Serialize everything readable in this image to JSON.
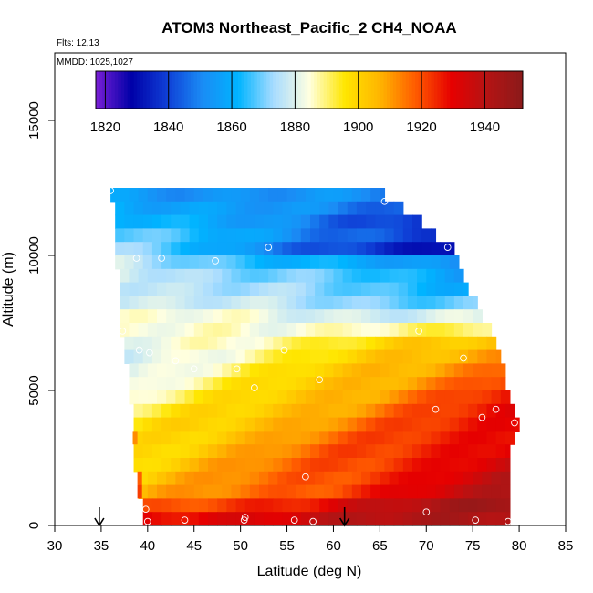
{
  "chart_data": {
    "type": "heatmap",
    "title": "ATOM3 Northeast_Pacific_2 CH4_NOAA",
    "flights_label": "Flts: 12,13",
    "date_label": "MMDD: 1025,1027",
    "xlabel": "Latitude (deg N)",
    "ylabel": "Altitude (m)",
    "xlim": [
      30,
      85
    ],
    "ylim": [
      0,
      17500
    ],
    "x_ticks": [
      30,
      35,
      40,
      45,
      50,
      55,
      60,
      65,
      70,
      75,
      80,
      85
    ],
    "y_ticks": [
      0,
      5000,
      10000,
      15000
    ],
    "x_tick_labels": [
      "30",
      "35",
      "40",
      "45",
      "50",
      "55",
      "60",
      "65",
      "70",
      "75",
      "80",
      "85"
    ],
    "y_tick_labels": [
      "0",
      "5000",
      "10000",
      "15000"
    ],
    "colorbar": {
      "range": [
        1817,
        1952
      ],
      "ticks": [
        1820,
        1840,
        1860,
        1880,
        1900,
        1920,
        1940
      ],
      "tick_labels": [
        "1820",
        "1840",
        "1860",
        "1880",
        "1900",
        "1920",
        "1940"
      ],
      "colors": [
        "#7a1fd6",
        "#0000a8",
        "#0f3fd6",
        "#1a8cf5",
        "#00b4ff",
        "#a8dcff",
        "#ffffe0",
        "#ffe600",
        "#ffb400",
        "#ff5a00",
        "#e60000",
        "#b41414",
        "#8b1a1a"
      ]
    },
    "arrows_latitude": [
      34.8,
      61.2
    ],
    "rows": [
      {
        "alt": 12250,
        "lat_start": 36.0,
        "lat_end": 65.5,
        "v_start": 1856,
        "v_end": 1850
      },
      {
        "alt": 11750,
        "lat_start": 36.5,
        "lat_end": 67.5,
        "v_start": 1862,
        "v_end": 1845
      },
      {
        "alt": 11250,
        "lat_start": 36.5,
        "lat_end": 69.5,
        "v_start": 1866,
        "v_end": 1838
      },
      {
        "alt": 10750,
        "lat_start": 36.5,
        "lat_end": 71.0,
        "v_start": 1870,
        "v_end": 1838
      },
      {
        "alt": 10250,
        "lat_start": 36.5,
        "lat_end": 73.0,
        "v_start": 1872,
        "v_end": 1826
      },
      {
        "alt": 9750,
        "lat_start": 36.5,
        "lat_end": 73.5,
        "v_start": 1876,
        "v_end": 1850
      },
      {
        "alt": 9250,
        "lat_start": 37.0,
        "lat_end": 74.0,
        "v_start": 1880,
        "v_end": 1858
      },
      {
        "alt": 8750,
        "lat_start": 37.0,
        "lat_end": 74.5,
        "v_start": 1880,
        "v_end": 1862
      },
      {
        "alt": 8250,
        "lat_start": 37.0,
        "lat_end": 75.5,
        "v_start": 1880,
        "v_end": 1868
      },
      {
        "alt": 7750,
        "lat_start": 37.0,
        "lat_end": 76.0,
        "v_start": 1884,
        "v_end": 1878
      },
      {
        "alt": 7250,
        "lat_start": 37.0,
        "lat_end": 77.0,
        "v_start": 1882,
        "v_end": 1890
      },
      {
        "alt": 6750,
        "lat_start": 37.5,
        "lat_end": 77.5,
        "v_start": 1880,
        "v_end": 1905
      },
      {
        "alt": 6250,
        "lat_start": 37.5,
        "lat_end": 78.0,
        "v_start": 1878,
        "v_end": 1912
      },
      {
        "alt": 5750,
        "lat_start": 38.0,
        "lat_end": 78.5,
        "v_start": 1880,
        "v_end": 1918
      },
      {
        "alt": 5250,
        "lat_start": 38.0,
        "lat_end": 78.5,
        "v_start": 1882,
        "v_end": 1922
      },
      {
        "alt": 4750,
        "lat_start": 38.0,
        "lat_end": 79.0,
        "v_start": 1885,
        "v_end": 1926
      },
      {
        "alt": 4250,
        "lat_start": 38.5,
        "lat_end": 79.5,
        "v_start": 1890,
        "v_end": 1928
      },
      {
        "alt": 3750,
        "lat_start": 38.5,
        "lat_end": 80.0,
        "v_start": 1894,
        "v_end": 1930
      },
      {
        "alt": 3250,
        "lat_start": 38.5,
        "lat_end": 79.5,
        "v_start": 1896,
        "v_end": 1932
      },
      {
        "alt": 2750,
        "lat_start": 38.5,
        "lat_end": 79.0,
        "v_start": 1898,
        "v_end": 1934
      },
      {
        "alt": 2250,
        "lat_start": 38.5,
        "lat_end": 79.0,
        "v_start": 1900,
        "v_end": 1936
      },
      {
        "alt": 1750,
        "lat_start": 39.0,
        "lat_end": 79.0,
        "v_start": 1902,
        "v_end": 1938
      },
      {
        "alt": 1250,
        "lat_start": 39.0,
        "lat_end": 79.0,
        "v_start": 1904,
        "v_end": 1940
      },
      {
        "alt": 750,
        "lat_start": 39.5,
        "lat_end": 79.0,
        "v_start": 1915,
        "v_end": 1948
      },
      {
        "alt": 250,
        "lat_start": 39.5,
        "lat_end": 79.0,
        "v_start": 1928,
        "v_end": 1946
      }
    ],
    "side_patches": [
      {
        "alt": 3250,
        "lat_start": 38.4,
        "lat_end": 38.9,
        "value": 1912
      },
      {
        "alt": 1750,
        "lat_start": 38.9,
        "lat_end": 39.4,
        "value": 1918
      },
      {
        "alt": 1250,
        "lat_start": 38.9,
        "lat_end": 39.4,
        "value": 1922
      }
    ],
    "points": [
      {
        "lat": 36.0,
        "alt": 12400
      },
      {
        "lat": 65.5,
        "alt": 12000
      },
      {
        "lat": 53.0,
        "alt": 10300
      },
      {
        "lat": 72.3,
        "alt": 10300
      },
      {
        "lat": 38.8,
        "alt": 9900
      },
      {
        "lat": 41.5,
        "alt": 9900
      },
      {
        "lat": 47.3,
        "alt": 9800
      },
      {
        "lat": 37.3,
        "alt": 7200
      },
      {
        "lat": 69.2,
        "alt": 7200
      },
      {
        "lat": 39.1,
        "alt": 6500
      },
      {
        "lat": 40.2,
        "alt": 6400
      },
      {
        "lat": 54.7,
        "alt": 6500
      },
      {
        "lat": 43.0,
        "alt": 6100
      },
      {
        "lat": 45.0,
        "alt": 5800
      },
      {
        "lat": 49.6,
        "alt": 5800
      },
      {
        "lat": 74.0,
        "alt": 6200
      },
      {
        "lat": 58.5,
        "alt": 5400
      },
      {
        "lat": 51.5,
        "alt": 5100
      },
      {
        "lat": 71.0,
        "alt": 4300
      },
      {
        "lat": 77.5,
        "alt": 4300
      },
      {
        "lat": 76.0,
        "alt": 4000
      },
      {
        "lat": 79.5,
        "alt": 3800
      },
      {
        "lat": 57.0,
        "alt": 1800
      },
      {
        "lat": 39.8,
        "alt": 600
      },
      {
        "lat": 70.0,
        "alt": 500
      },
      {
        "lat": 44.0,
        "alt": 200
      },
      {
        "lat": 50.5,
        "alt": 300
      },
      {
        "lat": 50.4,
        "alt": 200
      },
      {
        "lat": 55.8,
        "alt": 200
      },
      {
        "lat": 57.8,
        "alt": 150
      },
      {
        "lat": 40.0,
        "alt": 150
      },
      {
        "lat": 75.3,
        "alt": 200
      },
      {
        "lat": 78.8,
        "alt": 150
      }
    ]
  }
}
